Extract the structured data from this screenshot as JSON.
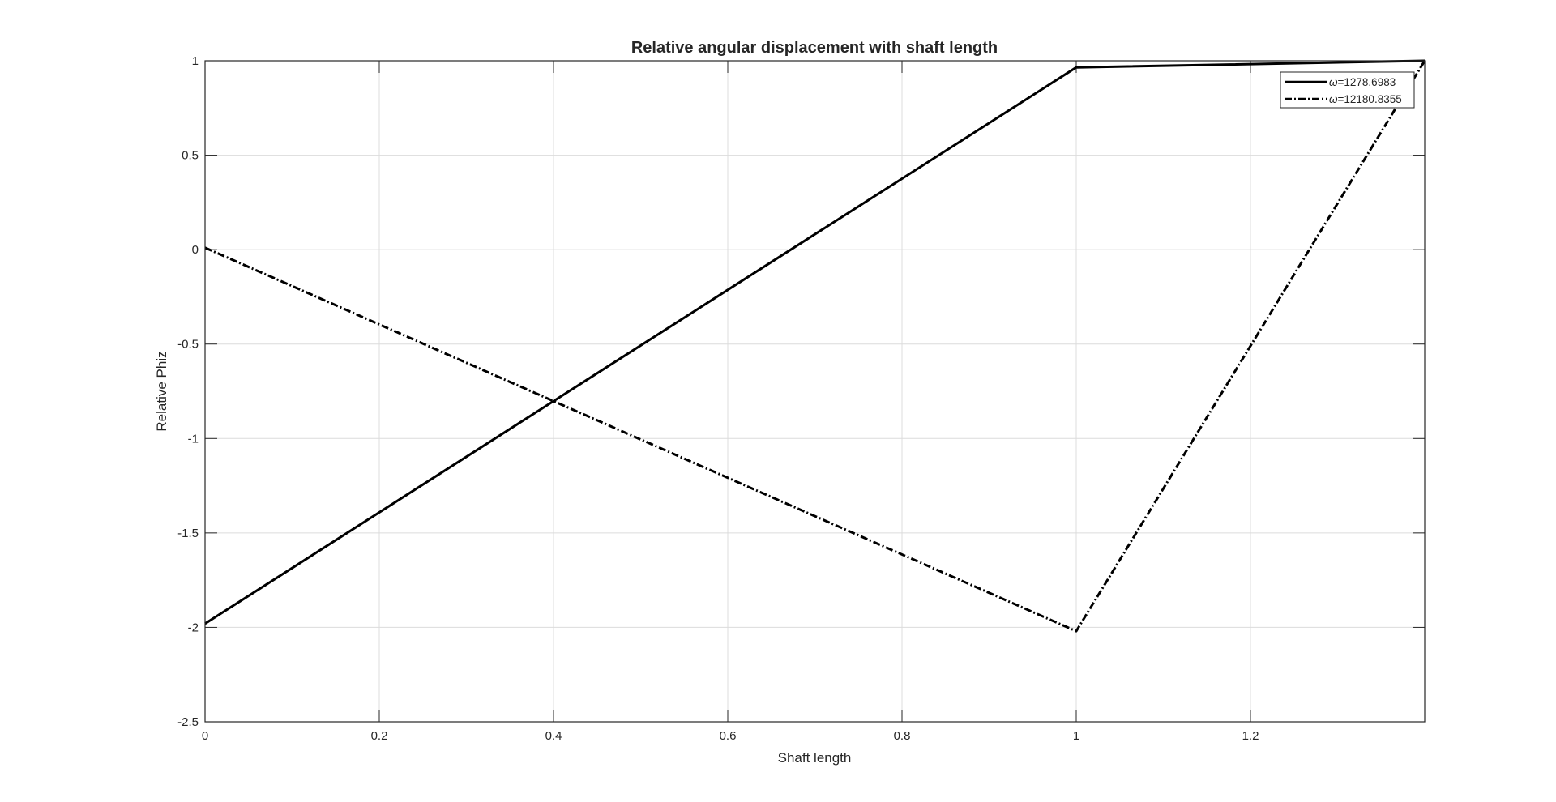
{
  "chart_data": {
    "type": "line",
    "title": "Relative angular displacement with shaft length",
    "xlabel": "Shaft length",
    "ylabel": "Relative Phiz",
    "xlim": [
      0,
      1.4
    ],
    "ylim": [
      -2.5,
      1
    ],
    "xticks": [
      0,
      0.2,
      0.4,
      0.6,
      0.8,
      1,
      1.2
    ],
    "xtick_labels": [
      "0",
      "0.2",
      "0.4",
      "0.6",
      "0.8",
      "1",
      "1.2"
    ],
    "yticks": [
      -2.5,
      -2,
      -1.5,
      -1,
      -0.5,
      0,
      0.5,
      1
    ],
    "ytick_labels": [
      "-2.5",
      "-2",
      "-1.5",
      "-1",
      "-0.5",
      "0",
      "0.5",
      "1"
    ],
    "grid": true,
    "legend_position": "top-right",
    "series": [
      {
        "name": "ω=1278.6983",
        "legend_symbol": "ω",
        "legend_value": "=1278.6983",
        "line_style": "solid",
        "color": "#000000",
        "x": [
          0,
          1,
          1.4
        ],
        "y": [
          -1.98,
          0.965,
          1.0
        ]
      },
      {
        "name": "ω=12180.8355",
        "legend_symbol": "ω",
        "legend_value": "=12180.8355",
        "line_style": "dashdot",
        "color": "#000000",
        "x": [
          0,
          1,
          1.4
        ],
        "y": [
          0.01,
          -2.02,
          1.0
        ]
      }
    ]
  }
}
